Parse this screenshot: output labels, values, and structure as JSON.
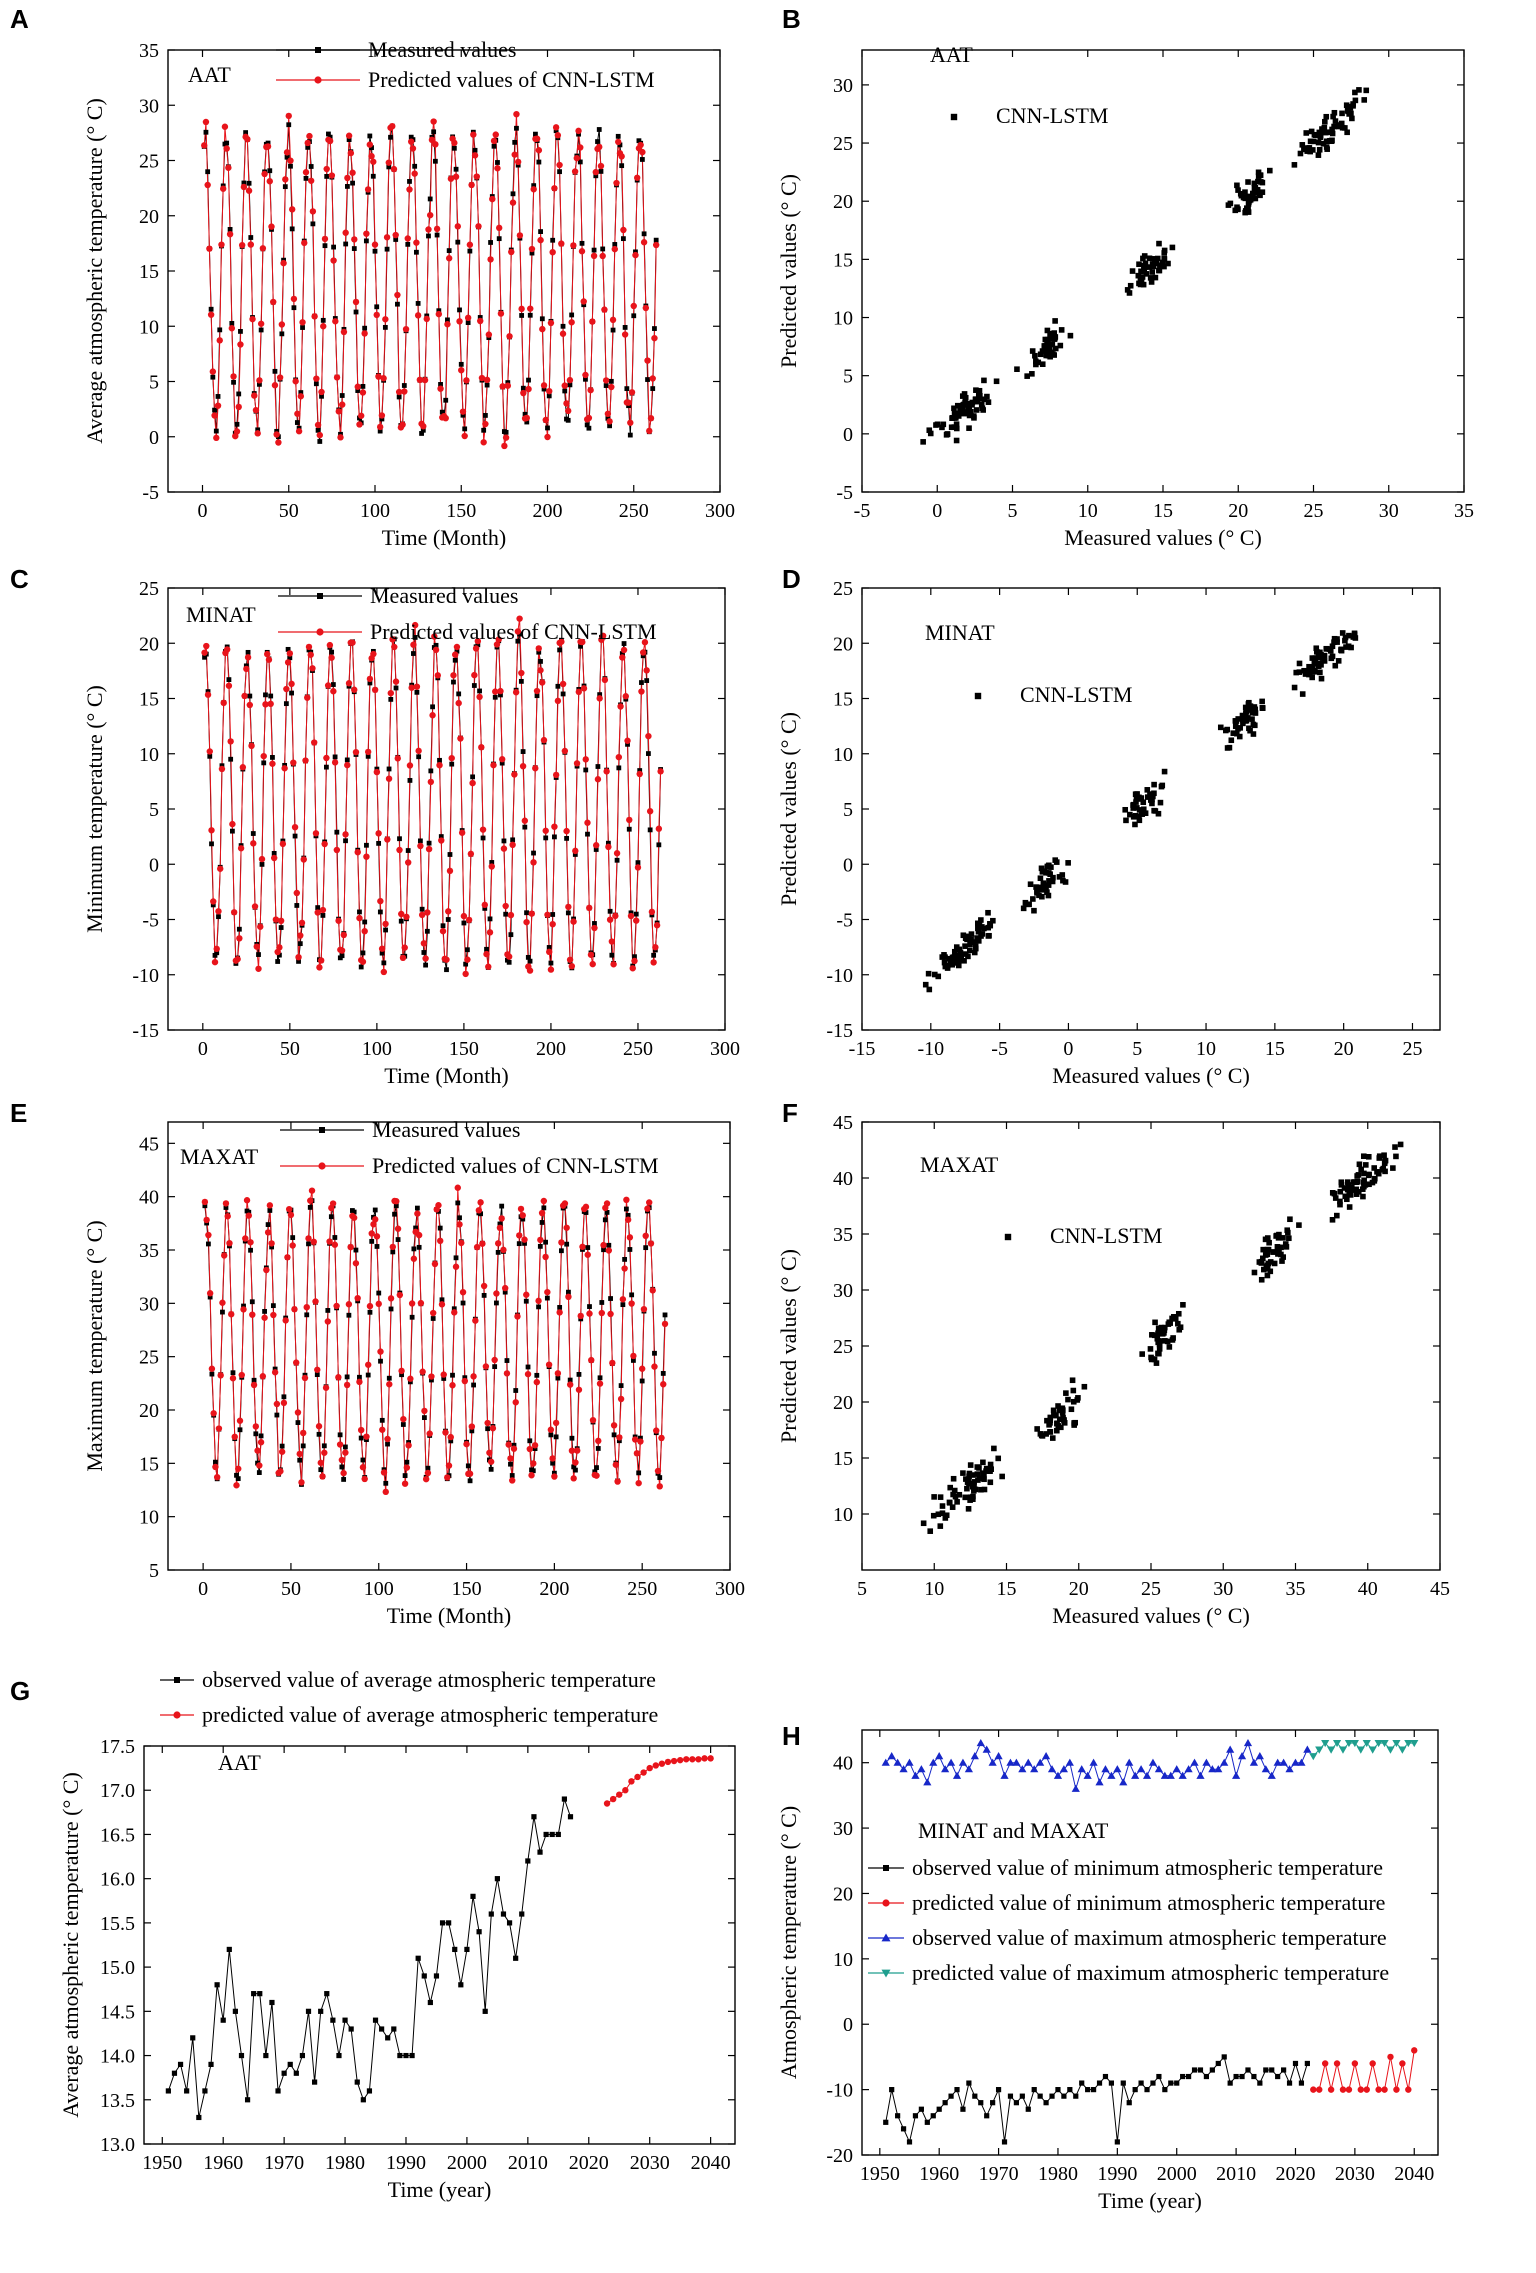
{
  "chart_data": [
    {
      "panel": "A",
      "type": "line",
      "label": "AAT",
      "xlabel": "Time (Month)",
      "ylabel": "Average atmospheric temperature (° C)",
      "xlim": [
        -20,
        300
      ],
      "ylim": [
        -5,
        35
      ],
      "xticks": [
        0,
        50,
        100,
        150,
        200,
        250,
        300
      ],
      "yticks": [
        -5,
        0,
        5,
        10,
        15,
        20,
        25,
        30,
        35
      ],
      "n": 263,
      "mean": 14,
      "amp": 13.4,
      "phase": -0.3,
      "series": [
        {
          "name": "Measured values",
          "color": "#000000",
          "marker": "square"
        },
        {
          "name": "Predicted values of CNN-LSTM",
          "color": "#e8141b",
          "marker": "circle"
        }
      ]
    },
    {
      "panel": "B",
      "type": "scatter",
      "label": "AAT",
      "legend": "CNN-LSTM",
      "xlabel": "Measured values (° C)",
      "ylabel": "Predicted values (° C)",
      "xlim": [
        -5,
        35
      ],
      "ylim": [
        -5,
        33
      ],
      "xticks": [
        -5,
        0,
        5,
        10,
        15,
        20,
        25,
        30,
        35
      ],
      "yticks": [
        -5,
        0,
        5,
        10,
        15,
        20,
        25,
        30
      ],
      "n": 263,
      "mean": 14,
      "amp": 13.4,
      "noise": 1.1
    },
    {
      "panel": "C",
      "type": "line",
      "label": "MINAT",
      "xlabel": "Time (Month)",
      "ylabel": "Minimum temperature (° C)",
      "xlim": [
        -20,
        300
      ],
      "ylim": [
        -15,
        25
      ],
      "xticks": [
        0,
        50,
        100,
        150,
        200,
        250,
        300
      ],
      "yticks": [
        -15,
        -10,
        -5,
        0,
        5,
        10,
        15,
        20,
        25
      ],
      "n": 263,
      "mean": 5.5,
      "amp": 14.5,
      "phase": -0.3,
      "series": [
        {
          "name": "Measured values",
          "color": "#000000",
          "marker": "square"
        },
        {
          "name": "Predicted values of CNN-LSTM",
          "color": "#e8141b",
          "marker": "circle"
        }
      ]
    },
    {
      "panel": "D",
      "type": "scatter",
      "label": "MINAT",
      "legend": "CNN-LSTM",
      "xlabel": "Measured values (° C)",
      "ylabel": "Predicted values (° C)",
      "xlim": [
        -15,
        27
      ],
      "ylim": [
        -15,
        25
      ],
      "xticks": [
        -15,
        -10,
        -5,
        0,
        5,
        10,
        15,
        20,
        25
      ],
      "yticks": [
        -15,
        -10,
        -5,
        0,
        5,
        10,
        15,
        20,
        25
      ],
      "n": 263,
      "mean": 5.5,
      "amp": 14.5,
      "noise": 1.1
    },
    {
      "panel": "E",
      "type": "line",
      "label": "MAXAT",
      "xlabel": "Time (Month)",
      "ylabel": "Maximum temperature (° C)",
      "xlim": [
        -20,
        300
      ],
      "ylim": [
        5,
        47
      ],
      "xticks": [
        0,
        50,
        100,
        150,
        200,
        250,
        300
      ],
      "yticks": [
        5,
        10,
        15,
        20,
        25,
        30,
        35,
        40,
        45
      ],
      "n": 263,
      "mean": 26.5,
      "amp": 12.5,
      "phase": -0.3,
      "series": [
        {
          "name": "Measured values",
          "color": "#000000",
          "marker": "square"
        },
        {
          "name": "Predicted values of CNN-LSTM",
          "color": "#e8141b",
          "marker": "circle"
        }
      ]
    },
    {
      "panel": "F",
      "type": "scatter",
      "label": "MAXAT",
      "legend": "CNN-LSTM",
      "xlabel": "Measured values (° C)",
      "ylabel": "Predicted values (° C)",
      "xlim": [
        5,
        45
      ],
      "ylim": [
        5,
        45
      ],
      "xticks": [
        5,
        10,
        15,
        20,
        25,
        30,
        35,
        40,
        45
      ],
      "yticks": [
        10,
        15,
        20,
        25,
        30,
        35,
        40,
        45
      ],
      "n": 263,
      "mean": 26,
      "amp": 15,
      "noise": 1.2
    },
    {
      "panel": "G",
      "type": "line",
      "label": "AAT",
      "xlabel": "Time (year)",
      "ylabel": "Average atmospheric temperature (° C)",
      "xlim": [
        1947,
        2044
      ],
      "ylim": [
        13.0,
        17.5
      ],
      "xticks": [
        1950,
        1960,
        1970,
        1980,
        1990,
        2000,
        2010,
        2020,
        2030,
        2040
      ],
      "yticks": [
        "13.0",
        "13.5",
        "14.0",
        "14.5",
        "15.0",
        "15.5",
        "16.0",
        "16.5",
        "17.0",
        "17.5"
      ],
      "series": [
        {
          "name": "observed value of average atmospheric temperature",
          "color": "#000000",
          "marker": "square",
          "x_start": 1951,
          "values": [
            13.6,
            13.8,
            13.9,
            13.6,
            14.2,
            13.3,
            13.6,
            13.9,
            14.8,
            14.4,
            15.2,
            14.5,
            14.0,
            13.5,
            14.7,
            14.7,
            14.0,
            14.6,
            13.6,
            13.8,
            13.9,
            13.8,
            14.0,
            14.5,
            13.7,
            14.5,
            14.7,
            14.4,
            14.0,
            14.4,
            14.3,
            13.7,
            13.5,
            13.6,
            14.4,
            14.3,
            14.2,
            14.3,
            14.0,
            14.0,
            14.0,
            15.1,
            14.9,
            14.6,
            14.9,
            15.5,
            15.5,
            15.2,
            14.8,
            15.2,
            15.8,
            15.4,
            14.5,
            15.6,
            16.0,
            15.6,
            15.5,
            15.1,
            15.6,
            16.2,
            16.7,
            16.3,
            16.5,
            16.5,
            16.5,
            16.9,
            16.7
          ]
        },
        {
          "name": "predicted value of average atmospheric temperature",
          "color": "#e8141b",
          "marker": "circle",
          "x_start": 2023,
          "values": [
            16.85,
            16.9,
            16.95,
            17.0,
            17.1,
            17.15,
            17.2,
            17.25,
            17.28,
            17.3,
            17.32,
            17.33,
            17.34,
            17.35,
            17.35,
            17.35,
            17.36,
            17.36
          ]
        }
      ]
    },
    {
      "panel": "H",
      "type": "line",
      "label": "MINAT and MAXAT",
      "xlabel": "Time (year)",
      "ylabel": "Atmospheric temperature (° C)",
      "xlim": [
        1947,
        2044
      ],
      "ylim": [
        -20,
        45
      ],
      "xticks": [
        1950,
        1960,
        1970,
        1980,
        1990,
        2000,
        2010,
        2020,
        2030,
        2040
      ],
      "yticks": [
        -20,
        -10,
        0,
        10,
        20,
        30,
        40
      ],
      "series": [
        {
          "name": "observed value of minimum atmospheric temperature",
          "color": "#000000",
          "marker": "square",
          "x_start": 1951,
          "values": [
            -15,
            -10,
            -14,
            -16,
            -18,
            -14,
            -13,
            -15,
            -14,
            -13,
            -12,
            -11,
            -10,
            -13,
            -9,
            -11,
            -12,
            -14,
            -12,
            -10,
            -18,
            -11,
            -12,
            -11,
            -13,
            -10,
            -11,
            -12,
            -11,
            -10,
            -11,
            -10,
            -11,
            -9,
            -10,
            -10,
            -9,
            -8,
            -9,
            -18,
            -9,
            -12,
            -10,
            -9,
            -10,
            -9,
            -8,
            -10,
            -9,
            -9,
            -8,
            -8,
            -7,
            -7,
            -8,
            -7,
            -6,
            -5,
            -9,
            -8,
            -8,
            -7,
            -8,
            -9,
            -7,
            -7,
            -8,
            -7,
            -9,
            -6,
            -9,
            -6
          ]
        },
        {
          "name": "predicted value of minimum atmospheric temperature",
          "color": "#e8141b",
          "marker": "circle",
          "x_start": 2023,
          "values": [
            -10,
            -10,
            -6,
            -10,
            -6,
            -10,
            -10,
            -6,
            -10,
            -10,
            -6,
            -10,
            -10,
            -5,
            -10,
            -6,
            -10,
            -4
          ]
        },
        {
          "name": "observed value of maximum atmospheric temperature",
          "color": "#1727c8",
          "marker": "triangle-up",
          "x_start": 1951,
          "values": [
            40,
            41,
            40,
            39,
            40,
            38,
            39,
            37,
            40,
            41,
            39,
            40,
            38,
            40,
            39,
            41,
            43,
            42,
            40,
            41,
            38,
            40,
            40,
            39,
            40,
            39,
            40,
            41,
            39,
            38,
            39,
            40,
            36,
            39,
            38,
            40,
            37,
            39,
            38,
            39,
            37,
            40,
            38,
            39,
            38,
            40,
            39,
            38,
            38,
            39,
            38,
            39,
            40,
            38,
            40,
            39,
            39,
            40,
            42,
            38,
            41,
            43,
            40,
            41,
            39,
            38,
            40,
            40,
            39,
            40,
            40,
            42
          ]
        },
        {
          "name": "predicted value of maximum atmospheric temperature",
          "color": "#1f9e8e",
          "marker": "triangle-down",
          "x_start": 2023,
          "values": [
            41,
            42,
            43,
            42,
            43,
            42,
            43,
            43,
            42,
            43,
            42,
            43,
            43,
            42,
            43,
            42,
            43,
            43
          ]
        }
      ]
    }
  ]
}
